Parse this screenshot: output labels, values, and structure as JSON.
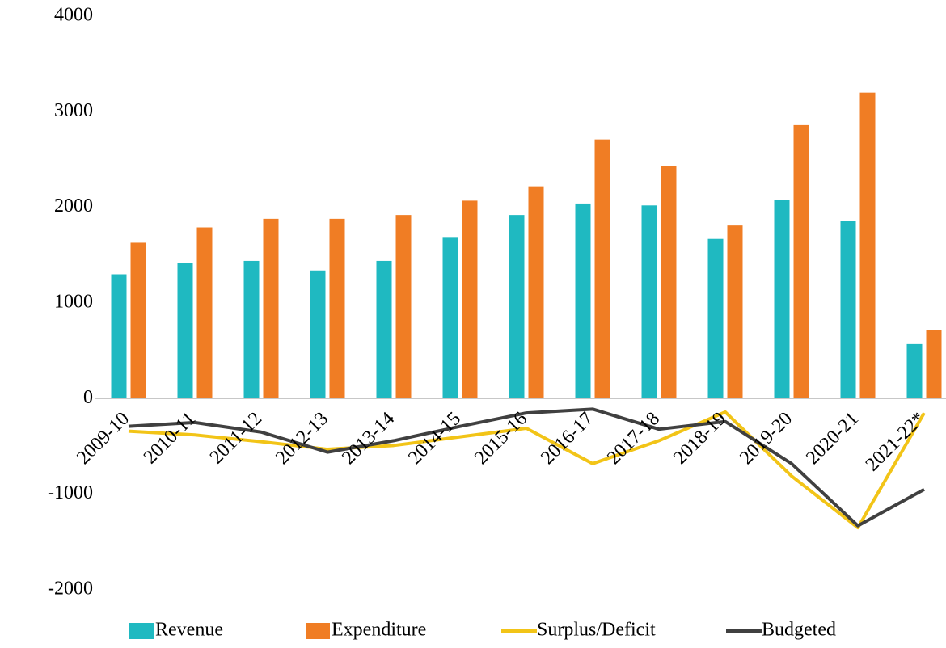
{
  "chart_data": {
    "type": "bar_line",
    "categories": [
      "2009-10",
      "2010-11",
      "2011-12",
      "2012-13",
      "2013-14",
      "2014-15",
      "2015-16",
      "2016-17",
      "2017-18",
      "2018-19",
      "2019-20",
      "2020-21",
      "2021-22*"
    ],
    "series": [
      {
        "name": "Revenue",
        "type": "bar",
        "color": "#1fb9c1",
        "values": [
          1300,
          1420,
          1440,
          1340,
          1440,
          1690,
          1920,
          2040,
          2020,
          1670,
          2080,
          1860,
          570
        ]
      },
      {
        "name": "Expenditure",
        "type": "bar",
        "color": "#f07d24",
        "values": [
          1630,
          1790,
          1880,
          1880,
          1920,
          2070,
          2220,
          2710,
          2430,
          1810,
          2860,
          3200,
          720
        ]
      },
      {
        "name": "Surplus/Deficit",
        "type": "line",
        "color": "#f2c417",
        "values": [
          -340,
          -380,
          -450,
          -530,
          -490,
          -400,
          -310,
          -680,
          -440,
          -140,
          -810,
          -1350,
          -150
        ]
      },
      {
        "name": "Budgeted",
        "type": "line",
        "color": "#404040",
        "values": [
          -290,
          -250,
          -350,
          -560,
          -440,
          -290,
          -150,
          -110,
          -320,
          -240,
          -680,
          -1330,
          -950
        ]
      }
    ],
    "ylim": [
      -2000,
      4000
    ],
    "yticks": [
      -2000,
      -1000,
      0,
      1000,
      2000,
      3000,
      4000
    ],
    "grid": false,
    "legend": "bottom"
  }
}
